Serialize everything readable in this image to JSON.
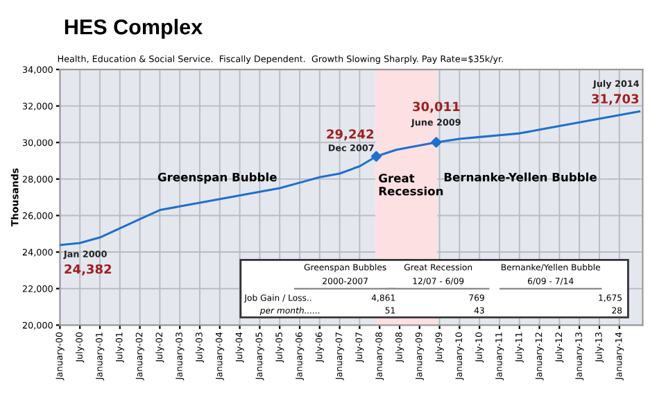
{
  "chart_data": {
    "type": "line",
    "title": "HES Complex",
    "subtitle": "Health, Education & Social Service.  Fiscally Dependent.  Growth Slowing Sharply. Pay Rate=$35k/yr.",
    "ylabel": "Thousands",
    "x": [
      "2000-01",
      "2000-07",
      "2001-01",
      "2001-07",
      "2002-01",
      "2002-07",
      "2003-01",
      "2003-07",
      "2004-01",
      "2004-07",
      "2005-01",
      "2005-07",
      "2006-01",
      "2006-07",
      "2007-01",
      "2007-07",
      "2007-12",
      "2008-06",
      "2009-06",
      "2010-01",
      "2010-07",
      "2011-01",
      "2011-07",
      "2012-01",
      "2012-07",
      "2013-01",
      "2013-07",
      "2014-01",
      "2014-07"
    ],
    "series": [
      {
        "color": "#1f6fd0",
        "marker": "none",
        "values": [
          24382,
          24500,
          24800,
          25300,
          25800,
          26300,
          26500,
          26700,
          26900,
          27100,
          27300,
          27500,
          27800,
          28100,
          28300,
          28700,
          29242,
          29600,
          30011,
          30200,
          30300,
          30400,
          30500,
          30700,
          30900,
          31100,
          31300,
          31500,
          31703
        ]
      },
      {
        "type": "scatter",
        "color": "#1f6fd0",
        "marker": "diamond",
        "x": [
          "2007-12",
          "2009-06"
        ],
        "values": [
          29242,
          30011
        ]
      }
    ],
    "xlim": [
      "2000-01",
      "2014-08"
    ],
    "xticks": [
      {
        "value": "2000-01",
        "label": "January-00"
      },
      {
        "value": "2000-07",
        "label": "July-00"
      },
      {
        "value": "2001-01",
        "label": "January-01"
      },
      {
        "value": "2001-07",
        "label": "July-01"
      },
      {
        "value": "2002-01",
        "label": "January-02"
      },
      {
        "value": "2002-07",
        "label": "July-02"
      },
      {
        "value": "2003-01",
        "label": "January-03"
      },
      {
        "value": "2003-07",
        "label": "July-03"
      },
      {
        "value": "2004-01",
        "label": "January-04"
      },
      {
        "value": "2004-07",
        "label": "July-04"
      },
      {
        "value": "2005-01",
        "label": "January-05"
      },
      {
        "value": "2005-07",
        "label": "July-05"
      },
      {
        "value": "2006-01",
        "label": "January-06"
      },
      {
        "value": "2006-07",
        "label": "July-06"
      },
      {
        "value": "2007-01",
        "label": "January-07"
      },
      {
        "value": "2007-07",
        "label": "July-07"
      },
      {
        "value": "2008-01",
        "label": "January-08"
      },
      {
        "value": "2008-07",
        "label": "July-08"
      },
      {
        "value": "2009-01",
        "label": "January-09"
      },
      {
        "value": "2009-07",
        "label": "July-09"
      },
      {
        "value": "2010-01",
        "label": "January-10"
      },
      {
        "value": "2010-07",
        "label": "July-10"
      },
      {
        "value": "2011-01",
        "label": "January-11"
      },
      {
        "value": "2011-07",
        "label": "July-11"
      },
      {
        "value": "2012-01",
        "label": "January-12"
      },
      {
        "value": "2012-07",
        "label": "July-12"
      },
      {
        "value": "2013-01",
        "label": "January-13"
      },
      {
        "value": "2013-07",
        "label": "July-13"
      },
      {
        "value": "2014-01",
        "label": "January-14"
      }
    ],
    "ylim": [
      20000,
      34000
    ],
    "yticks": [
      {
        "value": 20000,
        "label": "20,000"
      },
      {
        "value": 22000,
        "label": "22,000"
      },
      {
        "value": 24000,
        "label": "24,000"
      },
      {
        "value": 26000,
        "label": "26,000"
      },
      {
        "value": 28000,
        "label": "28,000"
      },
      {
        "value": 30000,
        "label": "30,000"
      },
      {
        "value": 32000,
        "label": "32,000"
      },
      {
        "value": 34000,
        "label": "34,000"
      }
    ],
    "grid": true,
    "legend": false,
    "bands": [
      {
        "axis": "x",
        "from": "2007-12",
        "to": "2009-06",
        "label": "Great\nRecession",
        "color": "#fde0e2"
      }
    ],
    "annotations": [
      {
        "text": "Jan 2000",
        "x": "2000-01",
        "y": 24382
      },
      {
        "text": "24,382",
        "x": "2000-01",
        "y": 24382
      },
      {
        "text": "Dec 2007",
        "x": "2007-12",
        "y": 29242
      },
      {
        "text": "29,242",
        "x": "2007-12",
        "y": 29242
      },
      {
        "text": "June 2009",
        "x": "2009-06",
        "y": 30011
      },
      {
        "text": "30,011",
        "x": "2009-06",
        "y": 30011
      },
      {
        "text": "July 2014",
        "x": "2014-07",
        "y": 31703
      },
      {
        "text": "31,703",
        "x": "2014-07",
        "y": 31703
      },
      "Greenspan Bubble",
      "Bernanke-Yellen Bubble",
      "Greenspan Bubbles",
      "Great Recession",
      "Bernanke/Yellen Bubble",
      "2000-2007",
      "12/07 - 6/09",
      "6/09 - 7/14",
      "Job Gain / Loss..",
      "4,861",
      "769",
      "1,675",
      "per month......",
      "51",
      "43",
      "28"
    ]
  }
}
